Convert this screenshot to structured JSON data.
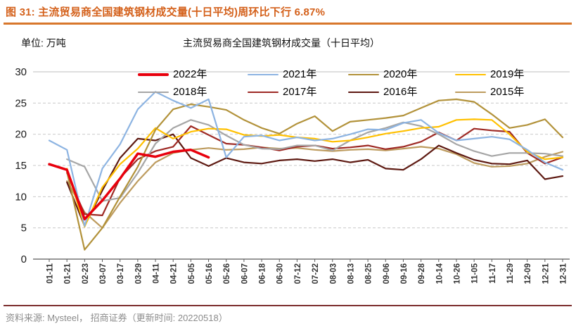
{
  "header": {
    "title": "图 31:  主流贸易商全国建筑钢材成交量(十日平均)周环比下行 6.87%"
  },
  "chart": {
    "unit_label": "单位: 万吨",
    "title": "主流贸易商全国建筑钢材成交量（十日平均）"
  },
  "footer": {
    "source": "资料来源:  Mysteel， 招商证券（更新时间:  20220518）"
  },
  "colors": {
    "accent_orange": "#d4611b",
    "title_rule": "#d8772c",
    "footer_rule": "#7d2f2f",
    "grid": "#c9c9c9",
    "axis": "#595959",
    "footer_text": "#8c8c8c"
  },
  "chart_data": {
    "type": "line",
    "title": "主流贸易商全国建筑钢材成交量（十日平均）",
    "unit": "万吨",
    "xlabel": "",
    "ylabel": "万吨",
    "ylim": [
      0,
      30
    ],
    "y_ticks": [
      0,
      5,
      10,
      15,
      20,
      25,
      30
    ],
    "grid": "horizontal-dashed",
    "legend_position": "top",
    "categories": [
      "01-11",
      "01-21",
      "02-23",
      "03-07",
      "03-17",
      "03-29",
      "04-11",
      "04-21",
      "05-05",
      "05-16",
      "05-26",
      "06-07",
      "06-18",
      "06-30",
      "07-12",
      "07-22",
      "08-03",
      "08-13",
      "08-25",
      "09-06",
      "09-16",
      "09-28",
      "10-14",
      "10-26",
      "11-05",
      "11-17",
      "11-29",
      "12-09",
      "12-21",
      "12-31"
    ],
    "series": [
      {
        "name": "2022年",
        "color": "#e8000d",
        "width": 3.5,
        "values": [
          15.2,
          14.3,
          6.4,
          9.4,
          12.9,
          16.9,
          16.4,
          17.2,
          17.5,
          16.3,
          null,
          null,
          null,
          null,
          null,
          null,
          null,
          null,
          null,
          null,
          null,
          null,
          null,
          null,
          null,
          null,
          null,
          null,
          null,
          null
        ]
      },
      {
        "name": "2021年",
        "color": "#8db4e2",
        "width": 2.2,
        "values": [
          19.0,
          17.5,
          5.3,
          14.5,
          18.4,
          24.0,
          26.8,
          25.4,
          24.2,
          25.6,
          16.3,
          19.6,
          19.8,
          19.0,
          19.5,
          19.0,
          19.3,
          20.0,
          20.8,
          20.7,
          21.8,
          22.3,
          20.2,
          19.0,
          19.3,
          19.6,
          19.2,
          17.5,
          15.5,
          14.3
        ]
      },
      {
        "name": "2020年",
        "color": "#b2923a",
        "width": 2.2,
        "values": [
          null,
          14.0,
          1.5,
          5.0,
          10.0,
          14.8,
          20.7,
          24.0,
          24.8,
          24.4,
          23.9,
          22.3,
          21.0,
          20.1,
          21.7,
          22.9,
          20.5,
          22.0,
          22.3,
          22.6,
          23.0,
          24.2,
          25.4,
          25.6,
          25.2,
          23.2,
          21.0,
          21.5,
          22.4,
          19.5
        ]
      },
      {
        "name": "2019年",
        "color": "#ffc000",
        "width": 2.2,
        "values": [
          null,
          14.5,
          5.2,
          11.5,
          15.2,
          17.7,
          21.0,
          19.3,
          20.4,
          20.9,
          20.8,
          19.9,
          19.7,
          19.9,
          19.5,
          19.3,
          18.8,
          19.0,
          19.5,
          20.1,
          20.5,
          21.0,
          21.2,
          22.3,
          22.4,
          22.3,
          20.0,
          17.2,
          16.0,
          16.3
        ]
      },
      {
        "name": "2018年",
        "color": "#a6a6a6",
        "width": 2.2,
        "values": [
          null,
          16.0,
          14.8,
          9.3,
          9.8,
          13.8,
          18.5,
          21.0,
          22.3,
          21.5,
          19.8,
          18.3,
          17.7,
          17.6,
          18.2,
          18.2,
          17.4,
          19.0,
          20.3,
          21.0,
          21.9,
          21.3,
          20.0,
          18.4,
          17.3,
          16.5,
          17.0,
          17.0,
          16.9,
          16.5
        ]
      },
      {
        "name": "2017年",
        "color": "#9e2a25",
        "width": 2.2,
        "values": [
          null,
          13.8,
          7.2,
          7.0,
          13.0,
          16.0,
          17.3,
          18.0,
          21.3,
          19.9,
          18.5,
          18.3,
          17.9,
          17.4,
          18.0,
          18.2,
          17.7,
          17.9,
          18.2,
          17.6,
          18.0,
          18.8,
          20.3,
          19.0,
          20.9,
          20.6,
          20.4,
          17.0,
          15.3,
          16.3
        ]
      },
      {
        "name": "2016年",
        "color": "#5e1a12",
        "width": 2.2,
        "values": [
          null,
          12.3,
          5.3,
          11.0,
          16.2,
          19.3,
          19.0,
          20.0,
          16.2,
          14.9,
          16.2,
          15.5,
          15.3,
          15.8,
          16.0,
          15.7,
          16.0,
          15.5,
          15.9,
          14.5,
          14.3,
          16.0,
          18.2,
          17.0,
          15.9,
          15.3,
          15.2,
          15.8,
          12.8,
          13.3
        ]
      },
      {
        "name": "2015年",
        "color": "#bd9b5e",
        "width": 2.2,
        "values": [
          null,
          12.5,
          7.5,
          5.0,
          9.0,
          12.5,
          15.5,
          17.0,
          17.5,
          17.8,
          17.5,
          17.6,
          17.9,
          17.7,
          17.8,
          17.5,
          17.3,
          17.5,
          17.6,
          17.4,
          17.7,
          18.0,
          17.7,
          16.8,
          15.4,
          14.8,
          14.9,
          15.3,
          16.4,
          17.2
        ]
      }
    ]
  }
}
